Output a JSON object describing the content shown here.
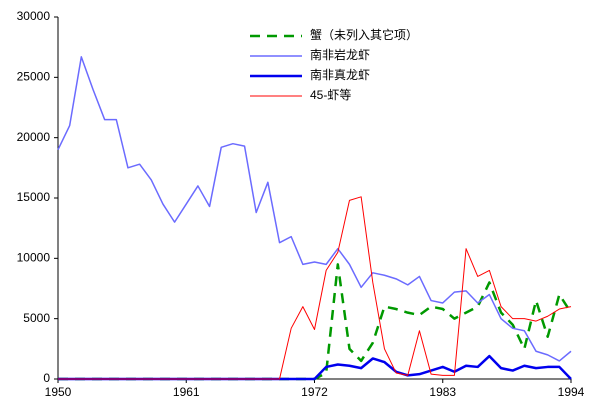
{
  "chart_data": {
    "type": "line",
    "x": [
      1950,
      1951,
      1952,
      1953,
      1954,
      1955,
      1956,
      1957,
      1958,
      1959,
      1960,
      1961,
      1962,
      1963,
      1964,
      1965,
      1966,
      1967,
      1968,
      1969,
      1970,
      1971,
      1972,
      1973,
      1974,
      1975,
      1976,
      1977,
      1978,
      1979,
      1980,
      1981,
      1982,
      1983,
      1984,
      1985,
      1986,
      1987,
      1988,
      1989,
      1990,
      1991,
      1992,
      1993,
      1994
    ],
    "series": [
      {
        "name": "蟹（未列入其它项）",
        "color": "#009900",
        "values": [
          0,
          0,
          0,
          0,
          0,
          0,
          0,
          0,
          0,
          0,
          0,
          0,
          0,
          0,
          0,
          0,
          0,
          0,
          0,
          0,
          0,
          0,
          0,
          500,
          9500,
          2500,
          1500,
          3000,
          6000,
          5800,
          5500,
          5300,
          6000,
          5800,
          5000,
          5500,
          6000,
          8000,
          5500,
          4500,
          2500,
          6500,
          3500,
          7000,
          5500
        ]
      },
      {
        "name": "南非岩龙虾",
        "color": "#6b6bff",
        "values": [
          19000,
          21000,
          26700,
          24000,
          21500,
          21500,
          17500,
          17800,
          16500,
          14500,
          13000,
          14500,
          16000,
          14300,
          19200,
          19500,
          19300,
          13800,
          16300,
          11300,
          11800,
          9500,
          9700,
          9500,
          10800,
          9500,
          7600,
          8800,
          8600,
          8300,
          7800,
          8500,
          6500,
          6300,
          7200,
          7300,
          6300,
          7000,
          5000,
          4200,
          4000,
          2300,
          2000,
          1500,
          2300
        ]
      },
      {
        "name": "南非真龙虾",
        "color": "#0000ee",
        "values": [
          0,
          0,
          0,
          0,
          0,
          0,
          0,
          0,
          0,
          0,
          0,
          0,
          0,
          0,
          0,
          0,
          0,
          0,
          0,
          0,
          0,
          0,
          0,
          1000,
          1200,
          1100,
          900,
          1700,
          1400,
          600,
          300,
          400,
          700,
          1000,
          600,
          1100,
          1000,
          1900,
          900,
          700,
          1100,
          900,
          1000,
          1000,
          0
        ]
      },
      {
        "name": "45-虾等",
        "color": "#ff0000",
        "values": [
          0,
          0,
          0,
          0,
          0,
          0,
          0,
          0,
          0,
          0,
          0,
          0,
          0,
          0,
          0,
          0,
          0,
          0,
          0,
          0,
          4200,
          6000,
          4100,
          9000,
          10500,
          14800,
          15100,
          8000,
          2500,
          500,
          300,
          4000,
          400,
          300,
          300,
          10800,
          8500,
          9000,
          6000,
          5000,
          5000,
          4800,
          5200,
          5800,
          6000
        ]
      }
    ],
    "xlim": [
      1950,
      1994
    ],
    "xticks": [
      1950,
      1961,
      1972,
      1983,
      1994
    ],
    "ylim": [
      0,
      30000
    ],
    "yticks": [
      0,
      5000,
      10000,
      15000,
      20000,
      25000,
      30000
    ]
  }
}
